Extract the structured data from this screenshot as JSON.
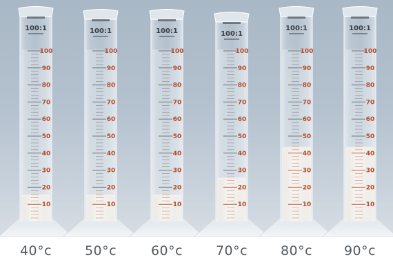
{
  "photo": {
    "cylinders": [
      {
        "temperature_label": "40°c",
        "sediment_level": 15,
        "brand_ratio": "100:1",
        "scale_labels": [
          "10",
          "20",
          "30",
          "40",
          "50",
          "60",
          "70",
          "80",
          "90",
          "100"
        ]
      },
      {
        "temperature_label": "50°c",
        "sediment_level": 15,
        "brand_ratio": "100:1",
        "scale_labels": [
          "10",
          "20",
          "30",
          "40",
          "50",
          "60",
          "70",
          "80",
          "90",
          "100"
        ]
      },
      {
        "temperature_label": "60°c",
        "sediment_level": 15,
        "brand_ratio": "100:1",
        "scale_labels": [
          "10",
          "20",
          "30",
          "40",
          "50",
          "60",
          "70",
          "80",
          "90",
          "100"
        ]
      },
      {
        "temperature_label": "70°c",
        "sediment_level": 25,
        "brand_ratio": "100:1",
        "scale_labels": [
          "10",
          "20",
          "30",
          "40",
          "50",
          "60",
          "70",
          "80",
          "90",
          "100"
        ]
      },
      {
        "temperature_label": "80°c",
        "sediment_level": 43,
        "brand_ratio": "100:1",
        "scale_labels": [
          "10",
          "20",
          "30",
          "40",
          "50",
          "60",
          "70",
          "80",
          "90",
          "100"
        ]
      },
      {
        "temperature_label": "90°c",
        "sediment_level": 43,
        "brand_ratio": "100:1",
        "scale_labels": [
          "10",
          "20",
          "30",
          "40",
          "50",
          "60",
          "70",
          "80",
          "90",
          "100"
        ]
      }
    ]
  },
  "colors": {
    "backdrop": "#b4c1ce",
    "sediment": "#f6f1ea",
    "scale_red": "#b34a2a",
    "caption": "#555b62"
  }
}
